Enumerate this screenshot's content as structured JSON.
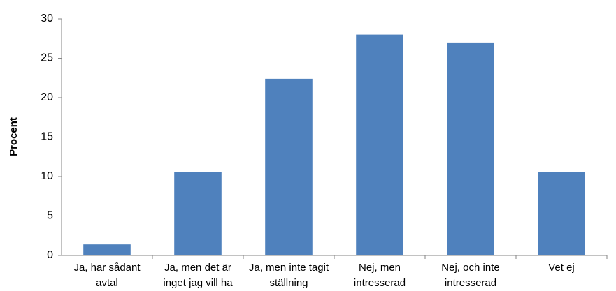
{
  "chart_data": {
    "type": "bar",
    "y_label": "Procent",
    "categories": [
      "Ja, har sådant avtal",
      "Ja, men det är inget jag vill ha",
      "Ja, men inte tagit ställning",
      "Nej, men intresserad",
      "Nej, och inte intresserad",
      "Vet ej"
    ],
    "values": [
      1.4,
      10.6,
      22.4,
      28,
      27,
      10.6
    ],
    "color": "#4f81bd",
    "ylim": [
      0,
      30
    ],
    "yticks": [
      0,
      5,
      10,
      15,
      20,
      25,
      30
    ],
    "grid": false
  }
}
